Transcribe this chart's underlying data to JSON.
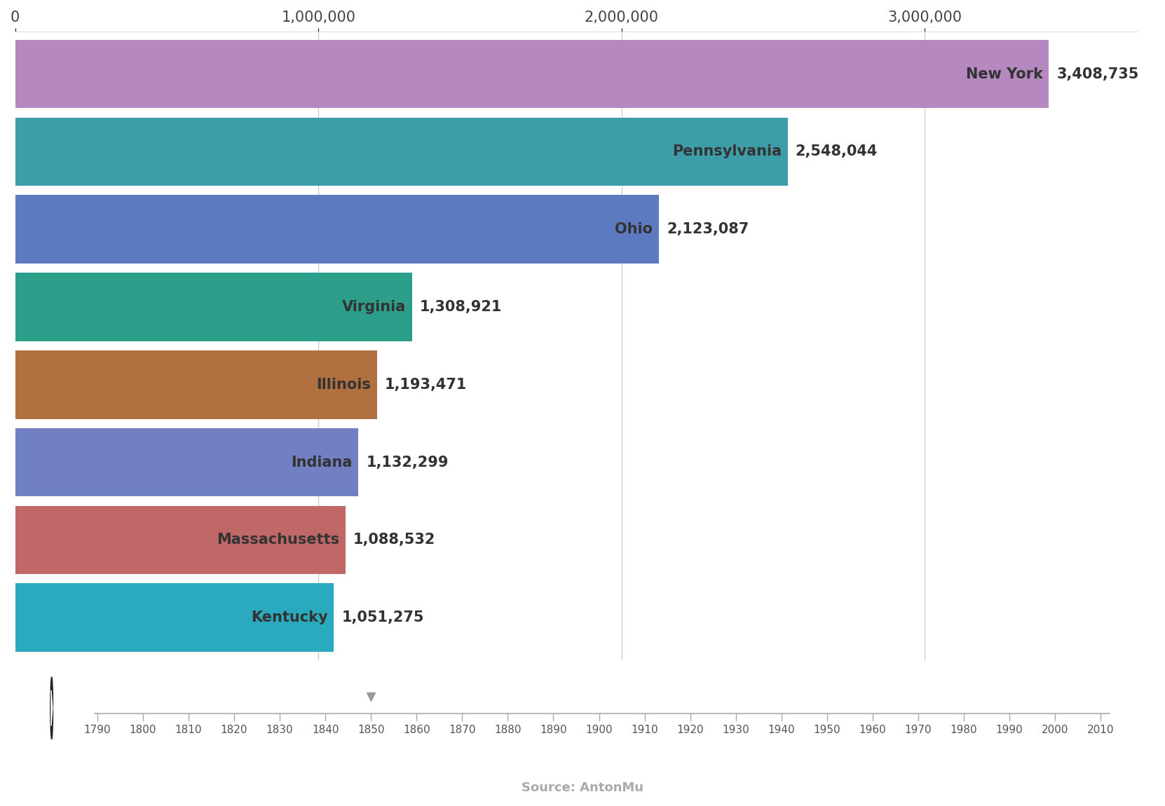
{
  "states": [
    "New York",
    "Pennsylvania",
    "Ohio",
    "Virginia",
    "Illinois",
    "Indiana",
    "Massachusetts",
    "Kentucky"
  ],
  "values": [
    3408735,
    2548044,
    2123087,
    1308921,
    1193471,
    1132299,
    1088532,
    1051275
  ],
  "labels": [
    "3,408,735",
    "2,548,044",
    "2,123,087",
    "1,308,921",
    "1,193,471",
    "1,132,299",
    "1,088,532",
    "1,051,275"
  ],
  "colors": [
    "#b589c0",
    "#3d9eaa",
    "#5b7abf",
    "#2d9e8a",
    "#b07040",
    "#7080c0",
    "#c06868",
    "#2aaabf"
  ],
  "bg_color": "#ffffff",
  "xlim": [
    0,
    3700000
  ],
  "xtick_values": [
    0,
    1000000,
    2000000,
    3000000
  ],
  "xtick_labels": [
    "0",
    "1,000,000",
    "2,000,000",
    "3,000,000"
  ],
  "vline_positions": [
    1000000,
    2000000,
    3000000
  ],
  "timeline_years": [
    1790,
    1800,
    1810,
    1820,
    1830,
    1840,
    1850,
    1860,
    1870,
    1880,
    1890,
    1900,
    1910,
    1920,
    1930,
    1940,
    1950,
    1960,
    1970,
    1980,
    1990,
    2000,
    2010
  ],
  "current_year": 1850,
  "source_text": "Source: AntonMu",
  "bar_height": 0.88,
  "label_fontsize": 15,
  "value_fontsize": 15,
  "xtick_fontsize": 15,
  "timeline_fontsize": 11
}
